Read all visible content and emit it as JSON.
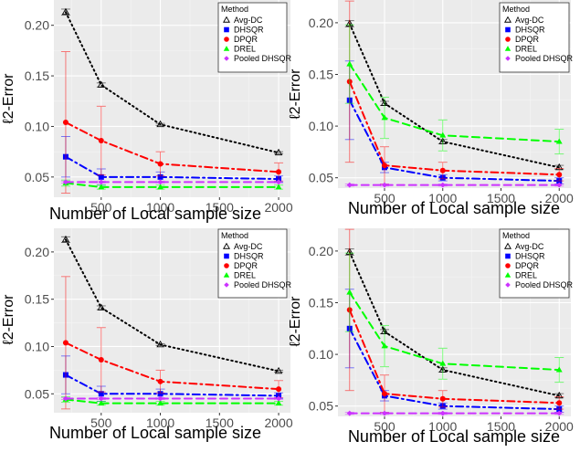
{
  "chart_data": [
    {
      "type": "line",
      "panel": "top-left",
      "x": [
        200,
        500,
        1000,
        2000
      ],
      "xticks": [
        "500",
        "1000",
        "1500",
        "2000"
      ],
      "yticks": [
        "0.05",
        "0.10",
        "0.15",
        "0.20"
      ],
      "xlim": [
        100,
        2100
      ],
      "ylim": [
        0.03,
        0.225
      ],
      "xlabel": "Number of Local sample size",
      "ylabel": "ℓ2-Error",
      "legend": {
        "title": "Method",
        "position": "top-right"
      },
      "series": [
        {
          "name": "Avg-DC",
          "color": "#000000",
          "dash": "dotted",
          "marker": "triangle-open",
          "values": [
            0.213,
            0.141,
            0.102,
            0.074
          ],
          "err": [
            0.003,
            0.002,
            0.001,
            0.001
          ]
        },
        {
          "name": "DHSQR",
          "color": "#0000ff",
          "dash": "dotdash",
          "marker": "square",
          "values": [
            0.07,
            0.05,
            0.05,
            0.048
          ],
          "err": [
            0.02,
            0.008,
            0.005,
            0.003
          ]
        },
        {
          "name": "DPQR",
          "color": "#ff0000",
          "dash": "dotdash",
          "marker": "circle",
          "values": [
            0.104,
            0.086,
            0.063,
            0.055
          ],
          "err": [
            0.07,
            0.034,
            0.012,
            0.009
          ]
        },
        {
          "name": "DREL",
          "color": "#00ff00",
          "dash": "dashed",
          "marker": "triangle",
          "values": [
            0.044,
            0.04,
            0.04,
            0.04
          ],
          "err": [
            0.003,
            0.002,
            0.002,
            0.002
          ]
        },
        {
          "name": "Pooled DHSQR",
          "color": "#cc33ff",
          "dash": "dashed",
          "marker": "diamond",
          "values": [
            0.045,
            0.045,
            0.045,
            0.045
          ],
          "err": [
            0.001,
            0.001,
            0.001,
            0.001
          ]
        }
      ]
    },
    {
      "type": "line",
      "panel": "top-right",
      "x": [
        200,
        500,
        1000,
        2000
      ],
      "xticks": [
        "500",
        "1000",
        "1500",
        "2000"
      ],
      "yticks": [
        "0.05",
        "0.10",
        "0.15",
        "0.20"
      ],
      "xlim": [
        100,
        2100
      ],
      "ylim": [
        0.04,
        0.222
      ],
      "xlabel": "Number of Local sample size",
      "ylabel": "ℓ2-Error",
      "legend": {
        "title": "Method",
        "position": "top-right"
      },
      "series": [
        {
          "name": "Avg-DC",
          "color": "#000000",
          "dash": "dotted",
          "marker": "triangle-open",
          "values": [
            0.199,
            0.122,
            0.085,
            0.06
          ],
          "err": [
            0.003,
            0.002,
            0.002,
            0.002
          ]
        },
        {
          "name": "DHSQR",
          "color": "#0000ff",
          "dash": "dotdash",
          "marker": "square",
          "values": [
            0.125,
            0.06,
            0.05,
            0.047
          ],
          "err": [
            0.038,
            0.005,
            0.003,
            0.003
          ]
        },
        {
          "name": "DPQR",
          "color": "#ff0000",
          "dash": "dotdash",
          "marker": "circle",
          "values": [
            0.143,
            0.062,
            0.057,
            0.053
          ],
          "err": [
            0.078,
            0.018,
            0.008,
            0.006
          ]
        },
        {
          "name": "DREL",
          "color": "#00ff00",
          "dash": "dashed",
          "marker": "triangle",
          "values": [
            0.16,
            0.108,
            0.091,
            0.085
          ],
          "err": [
            0.038,
            0.02,
            0.015,
            0.012
          ]
        },
        {
          "name": "Pooled DHSQR",
          "color": "#cc33ff",
          "dash": "dashed",
          "marker": "diamond",
          "values": [
            0.043,
            0.043,
            0.043,
            0.043
          ],
          "err": [
            0.001,
            0.001,
            0.001,
            0.001
          ]
        }
      ]
    },
    {
      "type": "line",
      "panel": "bottom-left",
      "x": [
        200,
        500,
        1000,
        2000
      ],
      "xticks": [
        "500",
        "1000",
        "1500",
        "2000"
      ],
      "yticks": [
        "0.05",
        "0.10",
        "0.15",
        "0.20"
      ],
      "xlim": [
        100,
        2100
      ],
      "ylim": [
        0.03,
        0.225
      ],
      "xlabel": "Number of Local sample size",
      "ylabel": "ℓ2-Error",
      "legend": {
        "title": "Method",
        "position": "top-right"
      },
      "series": [
        {
          "name": "Avg-DC",
          "color": "#000000",
          "dash": "dotted",
          "marker": "triangle-open",
          "values": [
            0.213,
            0.141,
            0.102,
            0.074
          ],
          "err": [
            0.003,
            0.002,
            0.001,
            0.001
          ]
        },
        {
          "name": "DHSQR",
          "color": "#0000ff",
          "dash": "dotdash",
          "marker": "square",
          "values": [
            0.07,
            0.05,
            0.05,
            0.048
          ],
          "err": [
            0.02,
            0.008,
            0.005,
            0.003
          ]
        },
        {
          "name": "DPQR",
          "color": "#ff0000",
          "dash": "dotdash",
          "marker": "circle",
          "values": [
            0.104,
            0.086,
            0.063,
            0.055
          ],
          "err": [
            0.07,
            0.034,
            0.012,
            0.009
          ]
        },
        {
          "name": "DREL",
          "color": "#00ff00",
          "dash": "dashed",
          "marker": "triangle",
          "values": [
            0.044,
            0.04,
            0.04,
            0.04
          ],
          "err": [
            0.003,
            0.002,
            0.002,
            0.002
          ]
        },
        {
          "name": "Pooled DHSQR",
          "color": "#cc33ff",
          "dash": "dashed",
          "marker": "diamond",
          "values": [
            0.045,
            0.045,
            0.045,
            0.045
          ],
          "err": [
            0.001,
            0.001,
            0.001,
            0.001
          ]
        }
      ]
    },
    {
      "type": "line",
      "panel": "bottom-right",
      "x": [
        200,
        500,
        1000,
        2000
      ],
      "xticks": [
        "500",
        "1000",
        "1500",
        "2000"
      ],
      "yticks": [
        "0.05",
        "0.10",
        "0.15",
        "0.20"
      ],
      "xlim": [
        100,
        2100
      ],
      "ylim": [
        0.04,
        0.222
      ],
      "xlabel": "Number of Local sample size",
      "ylabel": "ℓ2-Error",
      "legend": {
        "title": "Method",
        "position": "top-right"
      },
      "series": [
        {
          "name": "Avg-DC",
          "color": "#000000",
          "dash": "dotted",
          "marker": "triangle-open",
          "values": [
            0.199,
            0.122,
            0.085,
            0.06
          ],
          "err": [
            0.003,
            0.002,
            0.002,
            0.002
          ]
        },
        {
          "name": "DHSQR",
          "color": "#0000ff",
          "dash": "dotdash",
          "marker": "square",
          "values": [
            0.125,
            0.06,
            0.05,
            0.047
          ],
          "err": [
            0.038,
            0.005,
            0.003,
            0.003
          ]
        },
        {
          "name": "DPQR",
          "color": "#ff0000",
          "dash": "dotdash",
          "marker": "circle",
          "values": [
            0.143,
            0.062,
            0.057,
            0.053
          ],
          "err": [
            0.078,
            0.018,
            0.008,
            0.006
          ]
        },
        {
          "name": "DREL",
          "color": "#00ff00",
          "dash": "dashed",
          "marker": "triangle",
          "values": [
            0.16,
            0.108,
            0.091,
            0.085
          ],
          "err": [
            0.038,
            0.02,
            0.015,
            0.012
          ]
        },
        {
          "name": "Pooled DHSQR",
          "color": "#cc33ff",
          "dash": "dashed",
          "marker": "diamond",
          "values": [
            0.043,
            0.043,
            0.043,
            0.043
          ],
          "err": [
            0.001,
            0.001,
            0.001,
            0.001
          ]
        }
      ]
    }
  ]
}
